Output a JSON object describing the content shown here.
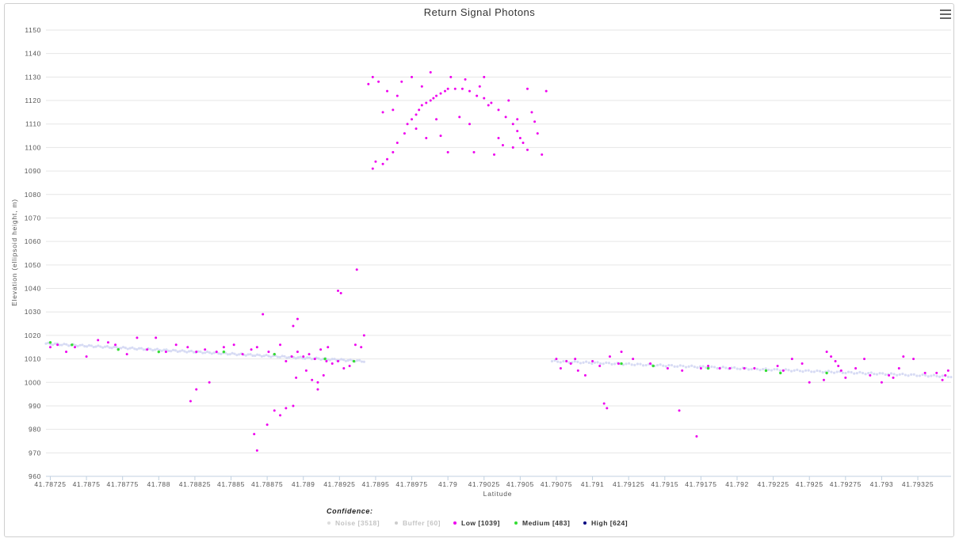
{
  "chart_data": {
    "type": "scatter",
    "title": "Return Signal Photons",
    "xlabel": "Latitude",
    "ylabel": "Elevation (ellipsoid height, m)",
    "xlim": [
      41.78722,
      41.79348
    ],
    "ylim": [
      960,
      1150
    ],
    "x_ticks": [
      "41.78725",
      "41.7875",
      "41.78775",
      "41.788",
      "41.78825",
      "41.7885",
      "41.78875",
      "41.789",
      "41.78925",
      "41.7895",
      "41.78975",
      "41.79",
      "41.79025",
      "41.7905",
      "41.79075",
      "41.791",
      "41.79125",
      "41.7915",
      "41.79175",
      "41.792",
      "41.79225",
      "41.7925",
      "41.79275",
      "41.793",
      "41.79325"
    ],
    "y_ticks": [
      "960",
      "970",
      "980",
      "990",
      "1000",
      "1010",
      "1020",
      "1030",
      "1040",
      "1050",
      "1060",
      "1070",
      "1080",
      "1090",
      "1100",
      "1110",
      "1120",
      "1130",
      "1140",
      "1150"
    ],
    "grid": true,
    "legend_position": "bottom-center",
    "legend": {
      "title": "Confidence:",
      "items": [
        {
          "label": "Noise [3518]",
          "color": "#dddddd",
          "text_color": "#c4c4c4"
        },
        {
          "label": "Buffer [60]",
          "color": "#cccccc",
          "text_color": "#c4c4c4"
        },
        {
          "label": "Low [1039]",
          "color": "#ee00ee",
          "text_color": "#333333"
        },
        {
          "label": "Medium [483]",
          "color": "#33dd33",
          "text_color": "#333333"
        },
        {
          "label": "High [624]",
          "color": "#000080",
          "text_color": "#333333"
        }
      ]
    },
    "series": [
      {
        "name": "Low [1039]",
        "color": "#ee00ee",
        "points": [
          [
            41.78725,
            1015
          ],
          [
            41.7873,
            1016
          ],
          [
            41.78736,
            1013
          ],
          [
            41.78742,
            1015
          ],
          [
            41.7875,
            1011
          ],
          [
            41.78758,
            1018
          ],
          [
            41.78765,
            1017
          ],
          [
            41.7877,
            1016
          ],
          [
            41.78778,
            1012
          ],
          [
            41.78785,
            1019
          ],
          [
            41.78792,
            1014
          ],
          [
            41.78798,
            1019
          ],
          [
            41.78805,
            1013
          ],
          [
            41.78812,
            1016
          ],
          [
            41.7882,
            1015
          ],
          [
            41.78826,
            1013
          ],
          [
            41.78832,
            1014
          ],
          [
            41.7884,
            1013
          ],
          [
            41.78845,
            1015
          ],
          [
            41.78852,
            1016
          ],
          [
            41.78858,
            1012
          ],
          [
            41.78864,
            1014
          ],
          [
            41.78868,
            1015
          ],
          [
            41.78872,
            1029
          ],
          [
            41.78876,
            1013
          ],
          [
            41.7888,
            1012
          ],
          [
            41.78884,
            1016
          ],
          [
            41.78888,
            1009
          ],
          [
            41.78892,
            1011
          ],
          [
            41.78896,
            1013
          ],
          [
            41.789,
            1011
          ],
          [
            41.78904,
            1012
          ],
          [
            41.78908,
            1010
          ],
          [
            41.78912,
            1014
          ],
          [
            41.78916,
            1009
          ],
          [
            41.7892,
            1008
          ],
          [
            41.78924,
            1009
          ],
          [
            41.78928,
            1006
          ],
          [
            41.78932,
            1007
          ],
          [
            41.78936,
            1016
          ],
          [
            41.7894,
            1015
          ],
          [
            41.78942,
            1020
          ],
          [
            41.78822,
            992
          ],
          [
            41.78826,
            997
          ],
          [
            41.78835,
            1000
          ],
          [
            41.78866,
            978
          ],
          [
            41.78868,
            971
          ],
          [
            41.78875,
            982
          ],
          [
            41.7888,
            988
          ],
          [
            41.78884,
            986
          ],
          [
            41.78888,
            989
          ],
          [
            41.78893,
            990
          ],
          [
            41.78896,
            1027
          ],
          [
            41.78893,
            1024
          ],
          [
            41.78906,
            1001
          ],
          [
            41.7891,
            1000
          ],
          [
            41.78914,
            1003
          ],
          [
            41.78917,
            1015
          ],
          [
            41.78924,
            1039
          ],
          [
            41.78926,
            1038
          ],
          [
            41.78937,
            1048
          ],
          [
            41.78895,
            1002
          ],
          [
            41.78902,
            1005
          ],
          [
            41.7891,
            997
          ],
          [
            41.78945,
            1127
          ],
          [
            41.78948,
            1091
          ],
          [
            41.7895,
            1094
          ],
          [
            41.78955,
            1093
          ],
          [
            41.78958,
            1095
          ],
          [
            41.78962,
            1098
          ],
          [
            41.78965,
            1102
          ],
          [
            41.7897,
            1106
          ],
          [
            41.78972,
            1110
          ],
          [
            41.78975,
            1112
          ],
          [
            41.78978,
            1114
          ],
          [
            41.7898,
            1116
          ],
          [
            41.78982,
            1118
          ],
          [
            41.78985,
            1119
          ],
          [
            41.78988,
            1120
          ],
          [
            41.7899,
            1121
          ],
          [
            41.78992,
            1122
          ],
          [
            41.78995,
            1123
          ],
          [
            41.78998,
            1124
          ],
          [
            41.79,
            1125
          ],
          [
            41.79005,
            1125
          ],
          [
            41.7901,
            1125
          ],
          [
            41.79015,
            1124
          ],
          [
            41.7902,
            1122
          ],
          [
            41.79025,
            1121
          ],
          [
            41.7903,
            1119
          ],
          [
            41.79035,
            1116
          ],
          [
            41.7904,
            1113
          ],
          [
            41.79045,
            1110
          ],
          [
            41.79048,
            1107
          ],
          [
            41.7905,
            1104
          ],
          [
            41.79052,
            1102
          ],
          [
            41.79055,
            1099
          ],
          [
            41.78948,
            1130
          ],
          [
            41.78952,
            1128
          ],
          [
            41.78958,
            1124
          ],
          [
            41.78962,
            1116
          ],
          [
            41.78968,
            1128
          ],
          [
            41.78975,
            1130
          ],
          [
            41.78982,
            1126
          ],
          [
            41.78988,
            1132
          ],
          [
            41.78995,
            1105
          ],
          [
            41.79002,
            1130
          ],
          [
            41.79008,
            1113
          ],
          [
            41.79012,
            1129
          ],
          [
            41.79018,
            1098
          ],
          [
            41.79022,
            1126
          ],
          [
            41.79028,
            1118
          ],
          [
            41.79032,
            1097
          ],
          [
            41.79038,
            1101
          ],
          [
            41.79042,
            1120
          ],
          [
            41.79048,
            1112
          ],
          [
            41.79055,
            1125
          ],
          [
            41.79058,
            1115
          ],
          [
            41.7906,
            1111
          ],
          [
            41.79062,
            1106
          ],
          [
            41.78955,
            1115
          ],
          [
            41.78965,
            1122
          ],
          [
            41.78978,
            1108
          ],
          [
            41.78985,
            1104
          ],
          [
            41.78992,
            1112
          ],
          [
            41.79,
            1098
          ],
          [
            41.79015,
            1110
          ],
          [
            41.79025,
            1130
          ],
          [
            41.79035,
            1104
          ],
          [
            41.79045,
            1100
          ],
          [
            41.79065,
            1097
          ],
          [
            41.79068,
            1124
          ],
          [
            41.79075,
            1010
          ],
          [
            41.79078,
            1006
          ],
          [
            41.79082,
            1009
          ],
          [
            41.79085,
            1008
          ],
          [
            41.79088,
            1010
          ],
          [
            41.7909,
            1005
          ],
          [
            41.79095,
            1003
          ],
          [
            41.791,
            1009
          ],
          [
            41.79105,
            1007
          ],
          [
            41.79108,
            991
          ],
          [
            41.7911,
            989
          ],
          [
            41.79112,
            1011
          ],
          [
            41.79118,
            1008
          ],
          [
            41.7912,
            1013
          ],
          [
            41.79128,
            1010
          ],
          [
            41.7914,
            1008
          ],
          [
            41.79152,
            1006
          ],
          [
            41.7916,
            988
          ],
          [
            41.79162,
            1005
          ],
          [
            41.79172,
            977
          ],
          [
            41.79175,
            1006
          ],
          [
            41.7918,
            1007
          ],
          [
            41.79188,
            1006
          ],
          [
            41.79195,
            1006
          ],
          [
            41.79205,
            1006
          ],
          [
            41.79212,
            1006
          ],
          [
            41.7922,
            1005
          ],
          [
            41.79228,
            1007
          ],
          [
            41.79232,
            1005
          ],
          [
            41.79238,
            1010
          ],
          [
            41.79245,
            1008
          ],
          [
            41.7925,
            1000
          ],
          [
            41.7926,
            1001
          ],
          [
            41.79262,
            1013
          ],
          [
            41.79265,
            1011
          ],
          [
            41.79268,
            1009
          ],
          [
            41.7927,
            1007
          ],
          [
            41.79272,
            1005
          ],
          [
            41.79275,
            1002
          ],
          [
            41.79282,
            1006
          ],
          [
            41.79288,
            1010
          ],
          [
            41.79292,
            1003
          ],
          [
            41.793,
            1000
          ],
          [
            41.79305,
            1003
          ],
          [
            41.79308,
            1002
          ],
          [
            41.79312,
            1006
          ],
          [
            41.79315,
            1011
          ],
          [
            41.79322,
            1010
          ],
          [
            41.7933,
            1004
          ],
          [
            41.79338,
            1004
          ],
          [
            41.79342,
            1001
          ],
          [
            41.79344,
            1003
          ],
          [
            41.79346,
            1005
          ]
        ]
      },
      {
        "name": "Medium [483]",
        "color": "#33dd33",
        "points": [
          [
            41.78725,
            1017
          ],
          [
            41.7874,
            1016
          ],
          [
            41.78772,
            1014
          ],
          [
            41.788,
            1013
          ],
          [
            41.78845,
            1013
          ],
          [
            41.7888,
            1012
          ],
          [
            41.78915,
            1010
          ],
          [
            41.78935,
            1009
          ],
          [
            41.7912,
            1008
          ],
          [
            41.79142,
            1007
          ],
          [
            41.7918,
            1006
          ],
          [
            41.7922,
            1005
          ],
          [
            41.7923,
            1004
          ],
          [
            41.79262,
            1004
          ]
        ]
      },
      {
        "name": "High [624]",
        "color": "#000080",
        "points": []
      }
    ]
  }
}
